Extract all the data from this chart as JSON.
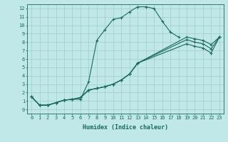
{
  "title": "",
  "xlabel": "Humidex (Indice chaleur)",
  "bg_color": "#c0e8e8",
  "grid_color": "#a0cccc",
  "line_color": "#1a6b5a",
  "xlim": [
    -0.5,
    23.5
  ],
  "ylim": [
    -0.5,
    12.5
  ],
  "xticks": [
    0,
    1,
    2,
    3,
    4,
    5,
    6,
    7,
    8,
    9,
    10,
    11,
    12,
    13,
    14,
    15,
    16,
    17,
    18,
    19,
    20,
    21,
    22,
    23
  ],
  "yticks": [
    0,
    1,
    2,
    3,
    4,
    5,
    6,
    7,
    8,
    9,
    10,
    11,
    12
  ],
  "lines": [
    {
      "x": [
        0,
        1,
        2,
        3,
        4,
        5,
        6,
        7,
        8,
        9,
        10,
        11,
        12,
        13,
        14,
        15,
        16,
        17,
        18
      ],
      "y": [
        1.5,
        0.5,
        0.5,
        0.8,
        1.1,
        1.2,
        1.2,
        3.3,
        8.2,
        9.5,
        10.7,
        10.9,
        11.6,
        12.2,
        12.2,
        12.0,
        10.5,
        9.2,
        8.6
      ]
    },
    {
      "x": [
        0,
        1,
        2,
        3,
        4,
        5,
        6,
        7,
        8,
        9,
        10,
        11,
        12,
        13,
        19,
        20,
        21,
        22,
        23
      ],
      "y": [
        1.5,
        0.5,
        0.5,
        0.8,
        1.1,
        1.2,
        1.4,
        2.3,
        2.5,
        2.7,
        3.0,
        3.5,
        4.2,
        5.5,
        7.8,
        7.5,
        7.3,
        6.7,
        8.6
      ]
    },
    {
      "x": [
        0,
        1,
        2,
        3,
        4,
        5,
        6,
        7,
        8,
        9,
        10,
        11,
        12,
        13,
        19,
        20,
        21,
        22,
        23
      ],
      "y": [
        1.5,
        0.5,
        0.5,
        0.8,
        1.1,
        1.2,
        1.4,
        2.3,
        2.5,
        2.7,
        3.0,
        3.5,
        4.2,
        5.5,
        8.3,
        8.0,
        7.8,
        7.2,
        8.6
      ]
    },
    {
      "x": [
        0,
        1,
        2,
        3,
        4,
        5,
        6,
        7,
        8,
        9,
        10,
        11,
        12,
        13,
        19,
        20,
        21,
        22,
        23
      ],
      "y": [
        1.5,
        0.5,
        0.5,
        0.8,
        1.1,
        1.2,
        1.4,
        2.3,
        2.5,
        2.7,
        3.0,
        3.5,
        4.2,
        5.5,
        8.6,
        8.4,
        8.2,
        7.7,
        8.6
      ]
    }
  ]
}
